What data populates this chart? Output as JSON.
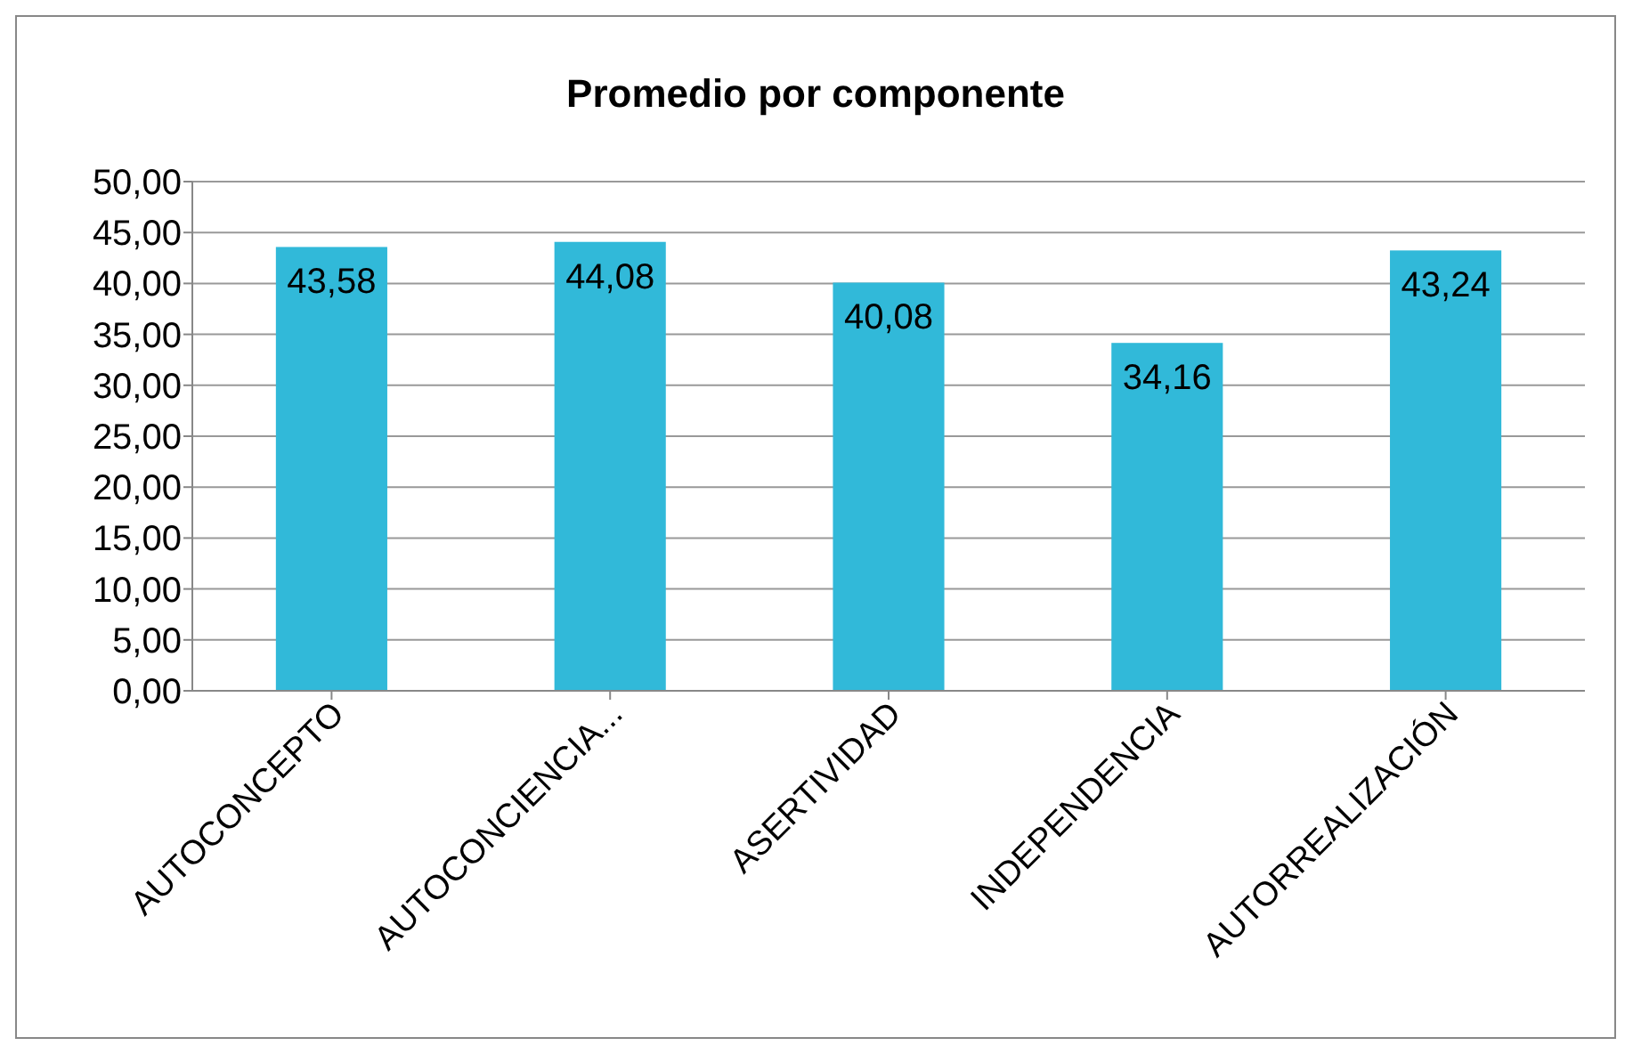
{
  "chart_data": {
    "type": "bar",
    "title": "Promedio por componente",
    "categories": [
      "AUTOCONCEPTO",
      "AUTOCONCIENCIA...",
      "ASERTIVIDAD",
      "INDEPENDENCIA",
      "AUTORREALIZACIÓN"
    ],
    "values": [
      43.58,
      44.08,
      40.08,
      34.16,
      43.24
    ],
    "value_labels": [
      "43,58",
      "44,08",
      "40,08",
      "34,16",
      "43,24"
    ],
    "color": "#31b9d9",
    "ylim": [
      0,
      50
    ],
    "yticks": [
      {
        "value": 0,
        "label": "0,00"
      },
      {
        "value": 5,
        "label": "5,00"
      },
      {
        "value": 10,
        "label": "10,00"
      },
      {
        "value": 15,
        "label": "15,00"
      },
      {
        "value": 20,
        "label": "20,00"
      },
      {
        "value": 25,
        "label": "25,00"
      },
      {
        "value": 30,
        "label": "30,00"
      },
      {
        "value": 35,
        "label": "35,00"
      },
      {
        "value": 40,
        "label": "40,00"
      },
      {
        "value": 45,
        "label": "45,00"
      },
      {
        "value": 50,
        "label": "50,00"
      }
    ],
    "grid": "y"
  }
}
